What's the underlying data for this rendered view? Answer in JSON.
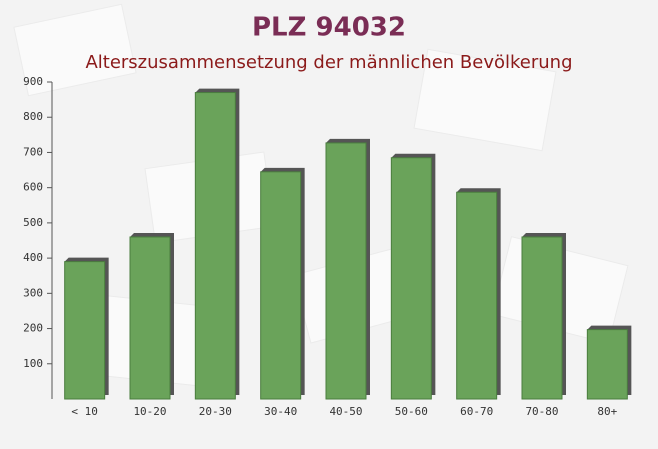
{
  "chart_data": {
    "type": "bar",
    "title": "PLZ 94032",
    "subtitle": "Alterszusammensetzung der männlichen Bevölkerung",
    "categories": [
      "< 10",
      "10-20",
      "20-30",
      "30-40",
      "40-50",
      "50-60",
      "60-70",
      "70-80",
      "80+"
    ],
    "values": [
      390,
      460,
      870,
      645,
      727,
      685,
      587,
      460,
      197
    ],
    "color": "#6aa35a",
    "ylim": [
      0,
      900
    ],
    "yticks": [
      100,
      200,
      300,
      400,
      500,
      600,
      700,
      800,
      900
    ]
  }
}
